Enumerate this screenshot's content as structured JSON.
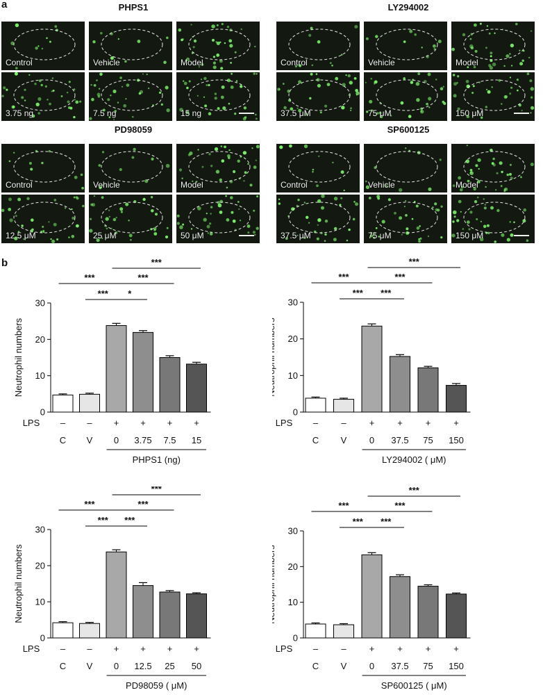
{
  "panel_a_label": "a",
  "panel_b_label": "b",
  "grids": [
    {
      "title": "PHPS1",
      "labels": [
        "Control",
        "Vehicle",
        "Model",
        "3.75 ng",
        "7.5 ng",
        "15 ng"
      ]
    },
    {
      "title": "LY294002",
      "labels": [
        "Control",
        "Vehicle",
        "Model",
        "37.5 μM",
        "75 μM",
        "150 μM"
      ]
    },
    {
      "title": "PD98059",
      "labels": [
        "Control",
        "Vehicle",
        "Model",
        "12.5 μM",
        "25 μM",
        "50 μM"
      ]
    },
    {
      "title": "SP600125",
      "labels": [
        "Control",
        "Vehicle",
        "Model",
        "37.5 μM",
        "75 μM",
        "150 μM"
      ]
    }
  ],
  "colors": {
    "bar_fills": [
      "#ffffff",
      "#e6e6e6",
      "#a8a8a8",
      "#8e8e8e",
      "#787878",
      "#555555"
    ],
    "cell_green": "#7cf06a"
  },
  "chart_data": [
    {
      "type": "bar",
      "ylabel": "Neutrophil numbers",
      "ylim": [
        0,
        30
      ],
      "yticks": [
        "0",
        "10",
        "20",
        "30"
      ],
      "categories": [
        "C",
        "V",
        "0",
        "3.75",
        "7.5",
        "15"
      ],
      "lps": [
        "–",
        "–",
        "+",
        "+",
        "+",
        "+"
      ],
      "lps_label": "LPS",
      "group_label": "PHPS1 (ng)",
      "values": [
        4.7,
        4.9,
        23.8,
        21.9,
        15.0,
        13.2
      ],
      "errors": [
        0.3,
        0.3,
        0.6,
        0.5,
        0.5,
        0.5
      ],
      "significance": [
        {
          "from": 0,
          "to": 2,
          "label": "***"
        },
        {
          "from": 1,
          "to": 2,
          "label": "***"
        },
        {
          "from": 2,
          "to": 3,
          "label": "*"
        },
        {
          "from": 2,
          "to": 4,
          "label": "***"
        },
        {
          "from": 2,
          "to": 5,
          "label": "***"
        }
      ]
    },
    {
      "type": "bar",
      "ylabel": "Neutrophil numbers",
      "ylim": [
        0,
        30
      ],
      "yticks": [
        "0",
        "10",
        "20",
        "30"
      ],
      "categories": [
        "C",
        "V",
        "0",
        "37.5",
        "75",
        "150"
      ],
      "lps": [
        "–",
        "–",
        "+",
        "+",
        "+",
        "+"
      ],
      "lps_label": "LPS",
      "group_label": "LY294002 ( μM)",
      "values": [
        3.8,
        3.5,
        23.5,
        15.2,
        12.1,
        7.3
      ],
      "errors": [
        0.3,
        0.3,
        0.6,
        0.5,
        0.4,
        0.5
      ],
      "significance": [
        {
          "from": 0,
          "to": 2,
          "label": "***"
        },
        {
          "from": 1,
          "to": 2,
          "label": "***"
        },
        {
          "from": 2,
          "to": 3,
          "label": "***"
        },
        {
          "from": 2,
          "to": 4,
          "label": "***"
        },
        {
          "from": 2,
          "to": 5,
          "label": "***"
        }
      ]
    },
    {
      "type": "bar",
      "ylabel": "Neutrophil numbers",
      "ylim": [
        0,
        30
      ],
      "yticks": [
        "0",
        "10",
        "20",
        "30"
      ],
      "categories": [
        "C",
        "V",
        "0",
        "12.5",
        "25",
        "50"
      ],
      "lps": [
        "–",
        "–",
        "+",
        "+",
        "+",
        "+"
      ],
      "lps_label": "LPS",
      "group_label": "PD98059 ( μM)",
      "values": [
        4.2,
        4.0,
        23.8,
        14.5,
        12.7,
        12.2
      ],
      "errors": [
        0.3,
        0.3,
        0.6,
        0.8,
        0.4,
        0.3
      ],
      "significance": [
        {
          "from": 0,
          "to": 2,
          "label": "***"
        },
        {
          "from": 1,
          "to": 2,
          "label": "***"
        },
        {
          "from": 2,
          "to": 3,
          "label": "***"
        },
        {
          "from": 2,
          "to": 4,
          "label": "***"
        },
        {
          "from": 2,
          "to": 5,
          "label": "***"
        }
      ]
    },
    {
      "type": "bar",
      "ylabel": "Neutrophil numbers",
      "ylim": [
        0,
        30
      ],
      "yticks": [
        "0",
        "10",
        "20",
        "30"
      ],
      "categories": [
        "C",
        "V",
        "0",
        "37.5",
        "75",
        "150"
      ],
      "lps": [
        "–",
        "–",
        "+",
        "+",
        "+",
        "+"
      ],
      "lps_label": "LPS",
      "group_label": "SP600125 ( μM)",
      "values": [
        3.9,
        3.7,
        23.3,
        17.2,
        14.5,
        12.3
      ],
      "errors": [
        0.3,
        0.3,
        0.6,
        0.5,
        0.4,
        0.3
      ],
      "significance": [
        {
          "from": 0,
          "to": 2,
          "label": "***"
        },
        {
          "from": 1,
          "to": 2,
          "label": "***"
        },
        {
          "from": 2,
          "to": 3,
          "label": "***"
        },
        {
          "from": 2,
          "to": 4,
          "label": "***"
        },
        {
          "from": 2,
          "to": 5,
          "label": "***"
        }
      ]
    }
  ]
}
